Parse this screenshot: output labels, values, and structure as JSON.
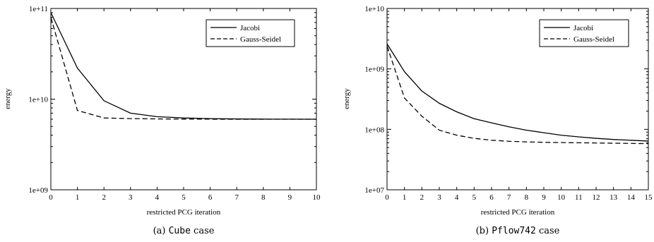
{
  "chart_data": [
    {
      "type": "line",
      "x": [
        0,
        1,
        2,
        3,
        4,
        5,
        6,
        7,
        8,
        9,
        10
      ],
      "xlabel": "restricted PCG iteration",
      "ylabel": "energy",
      "xlim": [
        0,
        10
      ],
      "ylim": [
        1000000000.0,
        100000000000.0
      ],
      "yscale": "log",
      "x_ticks": [
        "0",
        "1",
        "2",
        "3",
        "4",
        "5",
        "6",
        "7",
        "8",
        "9",
        "10"
      ],
      "y_ticks": [
        "1e+09",
        "1e+10",
        "1e+11"
      ],
      "legend_position": "top-right",
      "grid": false,
      "caption": {
        "prefix": "(a) ",
        "name": "Cube",
        "suffix": " case"
      },
      "series": [
        {
          "name": "Jacobi",
          "style": "solid",
          "values": [
            90000000000.0,
            22000000000.0,
            9600000000.0,
            7000000000.0,
            6400000000.0,
            6200000000.0,
            6100000000.0,
            6050000000.0,
            6020000000.0,
            6010000000.0,
            6000000000.0
          ]
        },
        {
          "name": "Gauss-Seidel",
          "style": "dashed",
          "values": [
            80000000000.0,
            7500000000.0,
            6200000000.0,
            6100000000.0,
            6050000000.0,
            6020000000.0,
            6010000000.0,
            6000000000.0,
            6000000000.0,
            6000000000.0,
            6000000000.0
          ]
        }
      ]
    },
    {
      "type": "line",
      "x": [
        0,
        1,
        2,
        3,
        4,
        5,
        6,
        7,
        8,
        9,
        10,
        11,
        12,
        13,
        14,
        15
      ],
      "xlabel": "restricted PCG iteration",
      "ylabel": "energy",
      "xlim": [
        0,
        15
      ],
      "ylim": [
        10000000.0,
        10000000000.0
      ],
      "yscale": "log",
      "x_ticks": [
        "0",
        "1",
        "2",
        "3",
        "4",
        "5",
        "6",
        "7",
        "8",
        "9",
        "10",
        "11",
        "12",
        "13",
        "14",
        "15"
      ],
      "y_ticks": [
        "1e+07",
        "1e+08",
        "1e+09",
        "1e+10"
      ],
      "legend_position": "top-right",
      "grid": false,
      "caption": {
        "prefix": "(b) ",
        "name": "Pflow742",
        "suffix": " case"
      },
      "series": [
        {
          "name": "Jacobi",
          "style": "solid",
          "values": [
            2600000000.0,
            900000000.0,
            430000000.0,
            270000000.0,
            195000000.0,
            150000000.0,
            128000000.0,
            110000000.0,
            97000000.0,
            88000000.0,
            80000000.0,
            75000000.0,
            71000000.0,
            68000000.0,
            66000000.0,
            64000000.0
          ]
        },
        {
          "name": "Gauss-Seidel",
          "style": "dashed",
          "values": [
            2400000000.0,
            330000000.0,
            165000000.0,
            97000000.0,
            80000000.0,
            71000000.0,
            66000000.0,
            63500000.0,
            62000000.0,
            61000000.0,
            60500000.0,
            60000000.0,
            59500000.0,
            59000000.0,
            58500000.0,
            58000000.0
          ]
        }
      ]
    }
  ]
}
